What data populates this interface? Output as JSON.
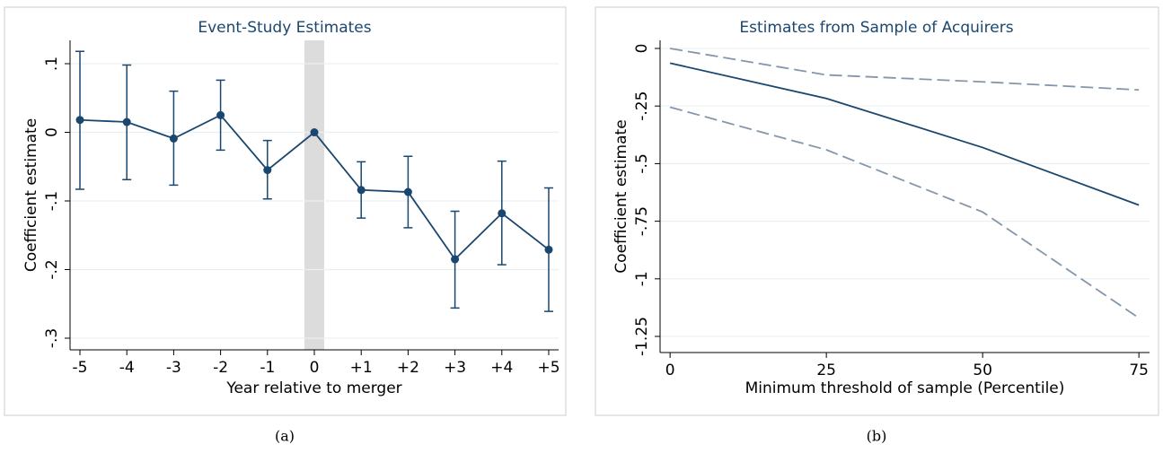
{
  "chart_data": [
    {
      "type": "line",
      "title": "Event-Study Estimates",
      "x_label": "Year relative to merger",
      "y_label": "Coefficient estimate",
      "categories": [
        "-5",
        "-4",
        "-3",
        "-2",
        "-1",
        "0",
        "+1",
        "+2",
        "+3",
        "+4",
        "+5"
      ],
      "series": [
        {
          "color": "#1a476f",
          "style": "solid",
          "markers": true,
          "values": [
            0.018,
            0.015,
            -0.009,
            0.025,
            -0.055,
            0,
            -0.084,
            -0.087,
            -0.185,
            -0.118,
            -0.171
          ],
          "ci_low": [
            -0.083,
            -0.069,
            -0.077,
            -0.026,
            -0.097,
            null,
            -0.125,
            -0.139,
            -0.256,
            -0.193,
            -0.261
          ],
          "ci_high": [
            0.118,
            0.098,
            0.06,
            0.076,
            -0.012,
            null,
            -0.043,
            -0.035,
            -0.115,
            -0.042,
            -0.081
          ]
        }
      ],
      "ylim": [
        -0.317,
        0.134
      ],
      "yticks": [
        {
          "value": 0.1,
          "label": ".1"
        },
        0,
        {
          "value": -0.1,
          "label": "-.1"
        },
        {
          "value": -0.2,
          "label": "-.2"
        },
        {
          "value": -0.3,
          "label": "-.3"
        }
      ],
      "grid": true,
      "caption": "(a)"
    },
    {
      "type": "line",
      "title": "Estimates from Sample of Acquirers",
      "x_label": "Minimum threshold of sample (Percentile)",
      "y_label": "Coefficient estimate",
      "x": [
        0,
        25,
        50,
        75
      ],
      "series": [
        {
          "color": "#1a476f",
          "style": "solid",
          "values": [
            -0.064,
            -0.217,
            -0.43,
            -0.68
          ]
        },
        {
          "color": "#8596ab",
          "style": "dashed",
          "values": [
            0,
            -0.115,
            -0.145,
            -0.18
          ]
        },
        {
          "color": "#8596ab",
          "style": "dashed",
          "values": [
            -0.255,
            -0.44,
            -0.71,
            -1.17
          ]
        }
      ],
      "xlim": [
        -1.6,
        76.7
      ],
      "xticks": [
        0,
        25,
        50,
        75
      ],
      "ylim": [
        -1.32,
        0.035
      ],
      "yticks": [
        0,
        {
          "value": -0.25,
          "label": "-.25"
        },
        {
          "value": -0.5,
          "label": "-.5"
        },
        {
          "value": -0.75,
          "label": "-.75"
        },
        -1,
        {
          "value": -1.25,
          "label": "-1.25"
        }
      ],
      "grid": true,
      "caption": "(b)"
    }
  ]
}
